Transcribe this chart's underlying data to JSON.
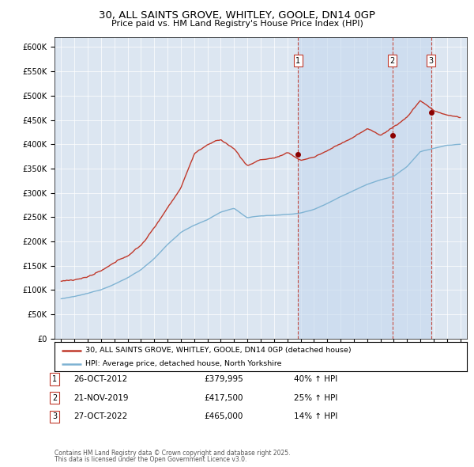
{
  "title": "30, ALL SAINTS GROVE, WHITLEY, GOOLE, DN14 0GP",
  "subtitle": "Price paid vs. HM Land Registry's House Price Index (HPI)",
  "red_label": "30, ALL SAINTS GROVE, WHITLEY, GOOLE, DN14 0GP (detached house)",
  "blue_label": "HPI: Average price, detached house, North Yorkshire",
  "sale_markers": [
    {
      "num": 1,
      "date": "26-OCT-2012",
      "price": 379995,
      "pct": "40%",
      "year": 2012.82
    },
    {
      "num": 2,
      "date": "21-NOV-2019",
      "price": 417500,
      "pct": "25%",
      "year": 2019.89
    },
    {
      "num": 3,
      "date": "27-OCT-2022",
      "price": 465000,
      "pct": "14%",
      "year": 2022.82
    }
  ],
  "footer1": "Contains HM Land Registry data © Crown copyright and database right 2025.",
  "footer2": "This data is licensed under the Open Government Licence v3.0.",
  "ylim": [
    0,
    620000
  ],
  "xlim": [
    1994.5,
    2025.5
  ],
  "bg_color": "#dce6f1",
  "shade_color": "#c5d8ee"
}
